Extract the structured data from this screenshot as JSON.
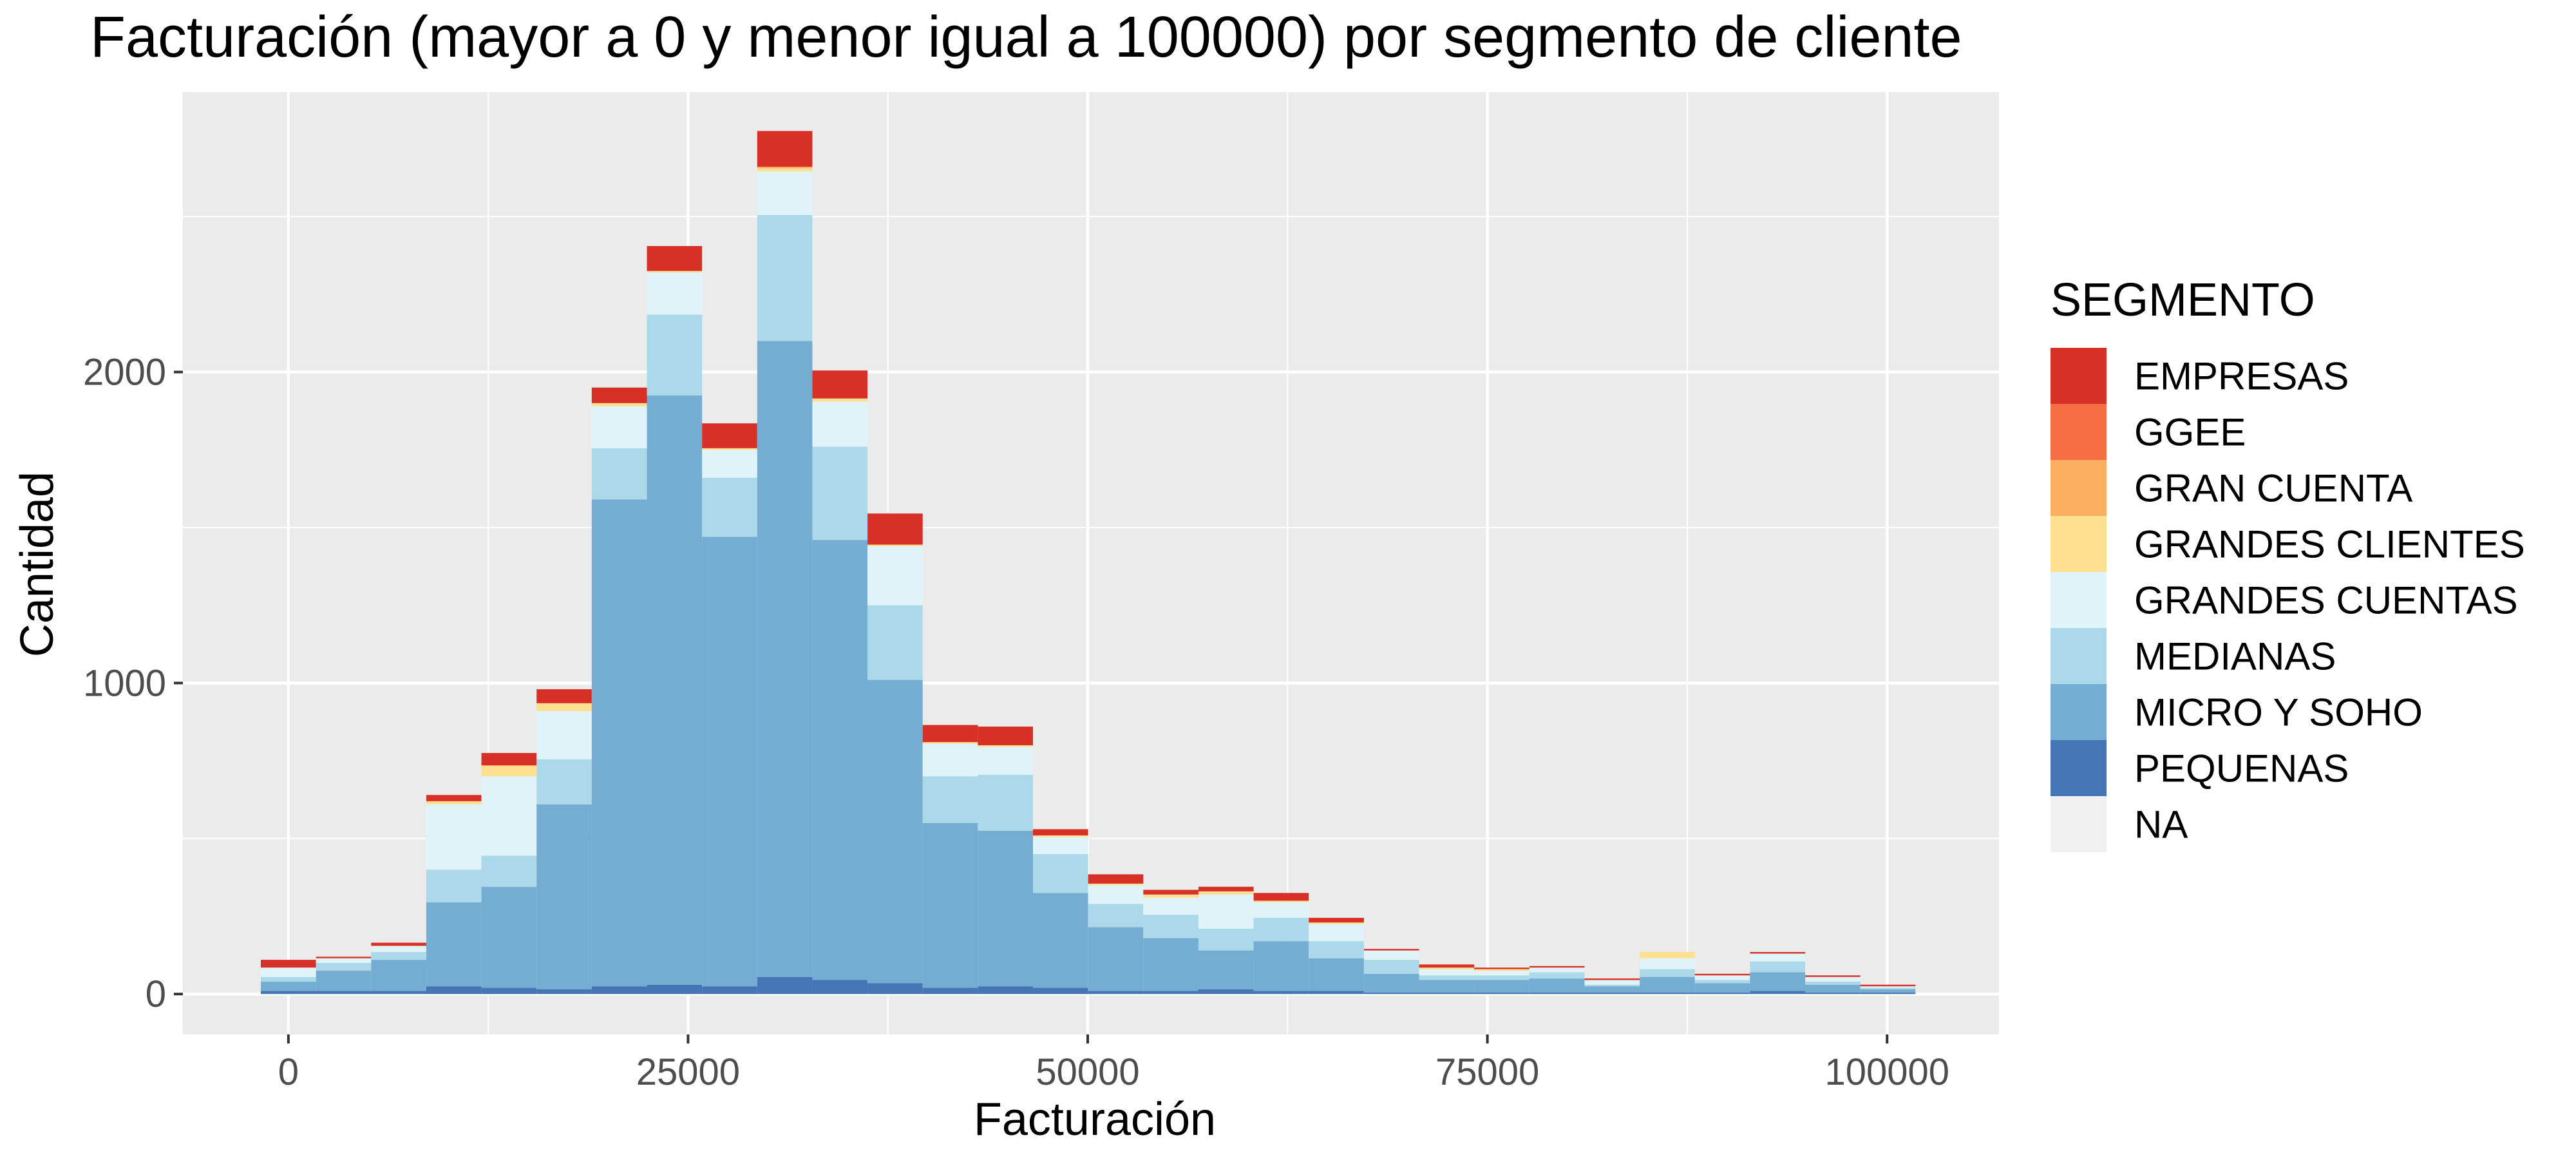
{
  "chart_data": {
    "type": "bar",
    "stacked": true,
    "title": "Facturación (mayor a 0 y menor igual a 100000) por segmento de cliente",
    "xlabel": "Facturación",
    "ylabel": "Cantidad",
    "xlim": [
      -6600,
      107000
    ],
    "ylim": [
      -130,
      2900
    ],
    "x_ticks": [
      0,
      25000,
      50000,
      75000,
      100000
    ],
    "x_tick_labels": [
      "0",
      "25000",
      "50000",
      "75000",
      "100000"
    ],
    "y_ticks": [
      0,
      1000,
      2000
    ],
    "y_tick_labels": [
      "0",
      "1000",
      "2000"
    ],
    "grid": true,
    "legend_title": "SEGMENTO",
    "legend_position": "right",
    "bin_width": 3450,
    "x": [
      0,
      3450,
      6900,
      10350,
      13800,
      17250,
      20700,
      24150,
      27600,
      31050,
      34500,
      37950,
      41400,
      44850,
      48300,
      51750,
      55200,
      58650,
      62100,
      65550,
      69000,
      72450,
      75900,
      79350,
      82800,
      86250,
      89700,
      93150,
      96600,
      100050
    ],
    "series": [
      {
        "name": "NA",
        "color": "#f0f0f0",
        "values": [
          0,
          0,
          0,
          0,
          0,
          0,
          0,
          0,
          0,
          0,
          0,
          0,
          0,
          0,
          0,
          0,
          0,
          0,
          0,
          0,
          0,
          0,
          0,
          0,
          0,
          0,
          0,
          0,
          0,
          0
        ]
      },
      {
        "name": "PEQUENAS",
        "color": "#4575b4",
        "values": [
          10,
          10,
          10,
          25,
          20,
          15,
          25,
          30,
          25,
          55,
          45,
          35,
          20,
          25,
          20,
          10,
          10,
          15,
          10,
          10,
          5,
          5,
          5,
          5,
          5,
          5,
          5,
          10,
          5,
          5
        ]
      },
      {
        "name": "MICRO Y SOHO",
        "color": "#74add1",
        "values": [
          30,
          65,
          100,
          270,
          325,
          595,
          1565,
          1895,
          1445,
          2045,
          1415,
          975,
          530,
          500,
          305,
          205,
          170,
          125,
          160,
          105,
          60,
          40,
          40,
          45,
          20,
          50,
          30,
          60,
          25,
          10
        ]
      },
      {
        "name": "MEDIANAS",
        "color": "#abd9e9",
        "values": [
          15,
          25,
          25,
          105,
          100,
          145,
          165,
          260,
          190,
          405,
          300,
          240,
          150,
          180,
          125,
          75,
          75,
          70,
          75,
          55,
          45,
          15,
          15,
          20,
          5,
          25,
          10,
          35,
          10,
          5
        ]
      },
      {
        "name": "GRANDES CUENTAS",
        "color": "#e0f3f8",
        "values": [
          30,
          15,
          20,
          210,
          255,
          155,
          135,
          135,
          90,
          140,
          145,
          190,
          105,
          90,
          55,
          60,
          55,
          110,
          50,
          55,
          30,
          20,
          15,
          15,
          15,
          35,
          15,
          25,
          15,
          5
        ]
      },
      {
        "name": "GRANDES CLIENTES",
        "color": "#fee090",
        "values": [
          0,
          0,
          0,
          10,
          35,
          25,
          10,
          5,
          5,
          10,
          10,
          5,
          5,
          5,
          5,
          5,
          10,
          10,
          5,
          5,
          0,
          5,
          5,
          0,
          0,
          20,
          0,
          0,
          0,
          0
        ]
      },
      {
        "name": "GRAN CUENTA",
        "color": "#fdae61",
        "values": [
          0,
          0,
          0,
          0,
          0,
          0,
          0,
          0,
          0,
          5,
          0,
          0,
          0,
          0,
          0,
          0,
          0,
          0,
          0,
          0,
          0,
          0,
          0,
          0,
          0,
          0,
          0,
          0,
          0,
          0
        ]
      },
      {
        "name": "GGEE",
        "color": "#f46d43",
        "values": [
          0,
          0,
          0,
          0,
          0,
          0,
          0,
          0,
          0,
          0,
          0,
          0,
          0,
          0,
          0,
          0,
          0,
          0,
          0,
          0,
          0,
          0,
          0,
          0,
          0,
          0,
          0,
          0,
          0,
          0
        ]
      },
      {
        "name": "EMPRESAS",
        "color": "#d73027",
        "values": [
          25,
          5,
          10,
          20,
          40,
          45,
          50,
          80,
          80,
          115,
          90,
          100,
          55,
          60,
          20,
          30,
          15,
          15,
          25,
          15,
          5,
          10,
          5,
          5,
          5,
          0,
          5,
          5,
          5,
          5
        ]
      }
    ],
    "legend_order": [
      "EMPRESAS",
      "GGEE",
      "GRAN CUENTA",
      "GRANDES CLIENTES",
      "GRANDES CUENTAS",
      "MEDIANAS",
      "MICRO Y SOHO",
      "PEQUENAS",
      "NA"
    ]
  }
}
